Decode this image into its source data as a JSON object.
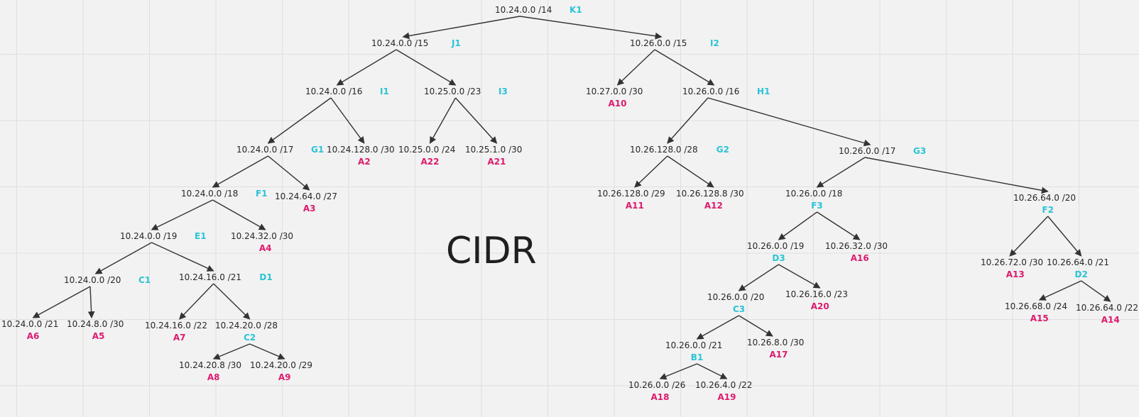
{
  "title": "CIDR",
  "colors": {
    "background": "#f2f2f2",
    "grid": "#dedede",
    "address": "#262626",
    "node_tag": "#29c4d6",
    "allocation_tag": "#dd1a6e",
    "edge": "#333333"
  },
  "nodes": {
    "K1": {
      "cidr": "10.24.0.0 /14",
      "tag": "K1"
    },
    "J1": {
      "cidr": "10.24.0.0 /15",
      "tag": "J1"
    },
    "I2": {
      "cidr": "10.26.0.0 /15",
      "tag": "I2"
    },
    "I1": {
      "cidr": "10.24.0.0 /16",
      "tag": "I1"
    },
    "I3": {
      "cidr": "10.25.0.0 /23",
      "tag": "I3"
    },
    "A10": {
      "cidr": "10.27.0.0 /30",
      "tag": "A10"
    },
    "H1": {
      "cidr": "10.26.0.0 /16",
      "tag": "H1"
    },
    "G1": {
      "cidr": "10.24.0.0 /17",
      "tag": "G1"
    },
    "A2": {
      "cidr": "10.24.128.0 /30",
      "tag": "A2"
    },
    "A22": {
      "cidr": "10.25.0.0 /24",
      "tag": "A22"
    },
    "A21": {
      "cidr": "10.25.1.0 /30",
      "tag": "A21"
    },
    "G2": {
      "cidr": "10.26.128.0 /28",
      "tag": "G2"
    },
    "G3": {
      "cidr": "10.26.0.0 /17",
      "tag": "G3"
    },
    "F1": {
      "cidr": "10.24.0.0 /18",
      "tag": "F1"
    },
    "A3": {
      "cidr": "10.24.64.0 /27",
      "tag": "A3"
    },
    "A11": {
      "cidr": "10.26.128.0 /29",
      "tag": "A11"
    },
    "A12": {
      "cidr": "10.26.128.8 /30",
      "tag": "A12"
    },
    "F3": {
      "cidr": "10.26.0.0 /18",
      "tag": "F3"
    },
    "F2": {
      "cidr": "10.26.64.0 /20",
      "tag": "F2"
    },
    "E1": {
      "cidr": "10.24.0.0 /19",
      "tag": "E1"
    },
    "A4": {
      "cidr": "10.24.32.0 /30",
      "tag": "A4"
    },
    "D3": {
      "cidr": "10.26.0.0 /19",
      "tag": "D3"
    },
    "A16": {
      "cidr": "10.26.32.0 /30",
      "tag": "A16"
    },
    "A13": {
      "cidr": "10.26.72.0 /30",
      "tag": "A13"
    },
    "D2": {
      "cidr": "10.26.64.0 /21",
      "tag": "D2"
    },
    "C1": {
      "cidr": "10.24.0.0 /20",
      "tag": "C1"
    },
    "D1": {
      "cidr": "10.24.16.0 /21",
      "tag": "D1"
    },
    "C3": {
      "cidr": "10.26.0.0 /20",
      "tag": "C3"
    },
    "A20": {
      "cidr": "10.26.16.0 /23",
      "tag": "A20"
    },
    "A15": {
      "cidr": "10.26.68.0 /24",
      "tag": "A15"
    },
    "A14": {
      "cidr": "10.26.64.0 /22",
      "tag": "A14"
    },
    "A6": {
      "cidr": "10.24.0.0 /21",
      "tag": "A6"
    },
    "A5": {
      "cidr": "10.24.8.0 /30",
      "tag": "A5"
    },
    "A7": {
      "cidr": "10.24.16.0 /22",
      "tag": "A7"
    },
    "C2": {
      "cidr": "10.24.20.0 /28",
      "tag": "C2"
    },
    "B1": {
      "cidr": "10.26.0.0 /21",
      "tag": "B1"
    },
    "A17": {
      "cidr": "10.26.8.0 /30",
      "tag": "A17"
    },
    "A8": {
      "cidr": "10.24.20.8 /30",
      "tag": "A8"
    },
    "A9": {
      "cidr": "10.24.20.0 /29",
      "tag": "A9"
    },
    "A18": {
      "cidr": "10.26.0.0 /26",
      "tag": "A18"
    },
    "A19": {
      "cidr": "10.26.4.0 /22",
      "tag": "A19"
    }
  },
  "edges": [
    [
      "K1",
      "J1"
    ],
    [
      "K1",
      "I2"
    ],
    [
      "J1",
      "I1"
    ],
    [
      "J1",
      "I3"
    ],
    [
      "I2",
      "A10"
    ],
    [
      "I2",
      "H1"
    ],
    [
      "I1",
      "G1"
    ],
    [
      "I1",
      "A2"
    ],
    [
      "I3",
      "A22"
    ],
    [
      "I3",
      "A21"
    ],
    [
      "H1",
      "G2"
    ],
    [
      "H1",
      "G3"
    ],
    [
      "G1",
      "F1"
    ],
    [
      "G1",
      "A3"
    ],
    [
      "G2",
      "A11"
    ],
    [
      "G2",
      "A12"
    ],
    [
      "G3",
      "F3"
    ],
    [
      "G3",
      "F2"
    ],
    [
      "F1",
      "E1"
    ],
    [
      "F1",
      "A4"
    ],
    [
      "F3",
      "D3"
    ],
    [
      "F3",
      "A16"
    ],
    [
      "F2",
      "A13"
    ],
    [
      "F2",
      "D2"
    ],
    [
      "E1",
      "C1"
    ],
    [
      "E1",
      "D1"
    ],
    [
      "D3",
      "C3"
    ],
    [
      "D3",
      "A20"
    ],
    [
      "D2",
      "A15"
    ],
    [
      "D2",
      "A14"
    ],
    [
      "C1",
      "A6"
    ],
    [
      "C1",
      "A5"
    ],
    [
      "D1",
      "A7"
    ],
    [
      "D1",
      "C2"
    ],
    [
      "C3",
      "B1"
    ],
    [
      "C3",
      "A17"
    ],
    [
      "C2",
      "A8"
    ],
    [
      "C2",
      "A9"
    ],
    [
      "B1",
      "A18"
    ],
    [
      "B1",
      "A19"
    ]
  ]
}
